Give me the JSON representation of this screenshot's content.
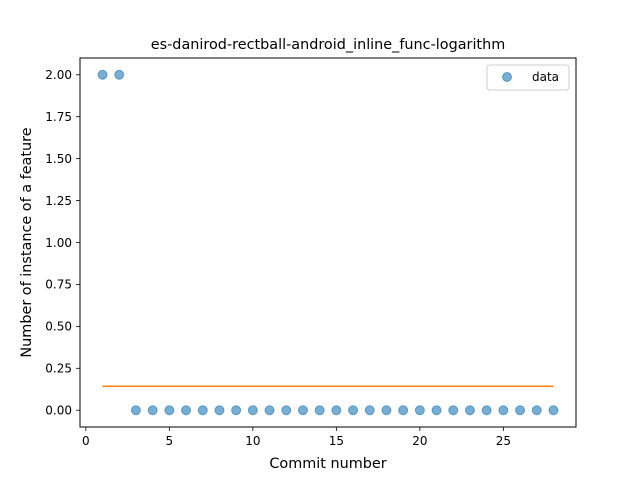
{
  "chart_data": {
    "type": "scatter",
    "title": "es-danirod-rectball-android_inline_func-logarithm",
    "xlabel": "Commit number",
    "ylabel": "Number of instance of a feature",
    "xlim": [
      -0.35,
      29.35
    ],
    "ylim": [
      -0.1,
      2.1
    ],
    "grid": false,
    "legend_position": "top-right",
    "x_ticks": [
      0,
      5,
      10,
      15,
      20,
      25
    ],
    "x_tick_labels": [
      "0",
      "5",
      "10",
      "15",
      "20",
      "25"
    ],
    "y_ticks": [
      0,
      0.25,
      0.5,
      0.75,
      1.0,
      1.25,
      1.5,
      1.75,
      2.0
    ],
    "y_tick_labels": [
      "0.00",
      "0.25",
      "0.50",
      "0.75",
      "1.00",
      "1.25",
      "1.50",
      "1.75",
      "2.00"
    ],
    "series": [
      {
        "name": "data",
        "kind": "scatter",
        "color": "#1f77b4",
        "x": [
          1,
          2,
          3,
          4,
          5,
          6,
          7,
          8,
          9,
          10,
          11,
          12,
          13,
          14,
          15,
          16,
          17,
          18,
          19,
          20,
          21,
          22,
          23,
          24,
          25,
          26,
          27,
          28
        ],
        "y": [
          2,
          2,
          0,
          0,
          0,
          0,
          0,
          0,
          0,
          0,
          0,
          0,
          0,
          0,
          0,
          0,
          0,
          0,
          0,
          0,
          0,
          0,
          0,
          0,
          0,
          0,
          0,
          0
        ]
      },
      {
        "kind": "line",
        "color": "#ff7f0e",
        "x": [
          1,
          28
        ],
        "y": [
          0.1429,
          0.1429
        ]
      }
    ]
  }
}
